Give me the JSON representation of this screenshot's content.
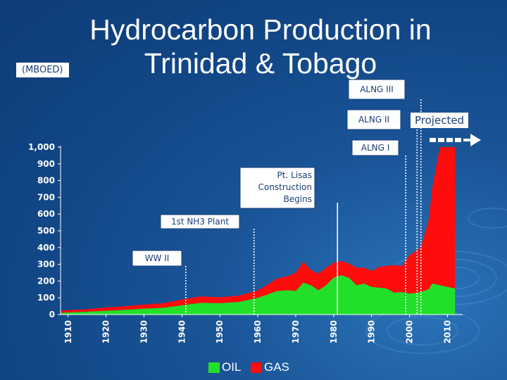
{
  "title_line1": "Hydrocarbon Production in",
  "title_line2": "Trinidad & Tobago",
  "unit_label": "(MBOED)",
  "projected_label": "Projected",
  "colors": {
    "oil": "#22e02a",
    "gas": "#ff0c0c",
    "background": "#154a8a",
    "text": "#ffffff"
  },
  "chart_data": {
    "type": "area",
    "stacked": true,
    "ylim": [
      0,
      1000
    ],
    "xlim": [
      1908,
      2014
    ],
    "y_ticks": [
      "0",
      "100",
      "200",
      "300",
      "400",
      "500",
      "600",
      "700",
      "800",
      "900",
      "1,000"
    ],
    "y_tick_values": [
      0,
      100,
      200,
      300,
      400,
      500,
      600,
      700,
      800,
      900,
      1000
    ],
    "x_ticks": [
      "1910",
      "1920",
      "1930",
      "1940",
      "1950",
      "1960",
      "1970",
      "1980",
      "1990",
      "2000",
      "2010"
    ],
    "x_tick_values": [
      1910,
      1920,
      1930,
      1940,
      1950,
      1960,
      1970,
      1980,
      1990,
      2000,
      2010
    ],
    "grid": false,
    "legend_position": "bottom",
    "x": [
      1908,
      1910,
      1915,
      1920,
      1925,
      1930,
      1935,
      1940,
      1945,
      1950,
      1955,
      1960,
      1962,
      1965,
      1968,
      1970,
      1972,
      1974,
      1976,
      1978,
      1980,
      1982,
      1984,
      1986,
      1988,
      1990,
      1992,
      1994,
      1996,
      1998,
      2000,
      2002,
      2003,
      2005,
      2006,
      2008,
      2010,
      2012
    ],
    "series": [
      {
        "name": "OIL",
        "values": [
          10,
          12,
          17,
          22,
          28,
          35,
          40,
          55,
          70,
          68,
          75,
          100,
          115,
          140,
          145,
          140,
          190,
          175,
          145,
          175,
          220,
          235,
          220,
          175,
          185,
          165,
          160,
          155,
          130,
          135,
          125,
          130,
          135,
          150,
          185,
          175,
          165,
          155
        ]
      },
      {
        "name": "GAS",
        "values": [
          12,
          14,
          15,
          20,
          22,
          25,
          28,
          35,
          38,
          35,
          38,
          45,
          55,
          75,
          85,
          110,
          125,
          90,
          100,
          105,
          90,
          85,
          85,
          105,
          95,
          95,
          125,
          135,
          165,
          155,
          230,
          255,
          270,
          410,
          575,
          825,
          835,
          845
        ]
      }
    ],
    "annotations": [
      {
        "text": "WW II",
        "x": 1941
      },
      {
        "text": "1st NH3 Plant",
        "x": 1959
      },
      {
        "text": "Pt. Lisas Construction Begins",
        "x": 1981
      },
      {
        "text": "ALNG I",
        "x": 1999
      },
      {
        "text": "ALNG II",
        "x": 2002
      },
      {
        "text": "ALNG III",
        "x": 2003
      }
    ]
  }
}
